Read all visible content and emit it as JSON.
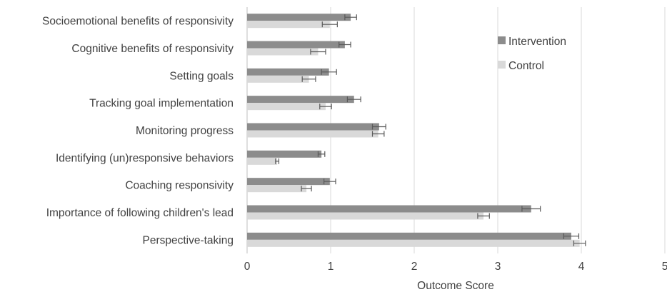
{
  "chart_data": {
    "type": "bar",
    "orientation": "horizontal",
    "categories": [
      "Socioemotional benefits of responsivity",
      "Cognitive benefits of responsivity",
      "Setting goals",
      "Tracking goal implementation",
      "Monitoring progress",
      "Identifying (un)responsive behaviors",
      "Coaching responsivity",
      "Importance of following children's lead",
      "Perspective-taking"
    ],
    "series": [
      {
        "name": "Intervention",
        "color": "#8c8c8c",
        "values": [
          1.24,
          1.17,
          0.98,
          1.28,
          1.58,
          0.89,
          0.99,
          3.4,
          3.88
        ],
        "error": [
          0.07,
          0.07,
          0.09,
          0.08,
          0.08,
          0.04,
          0.07,
          0.11,
          0.09
        ]
      },
      {
        "name": "Control",
        "color": "#d9d9d9",
        "values": [
          0.99,
          0.85,
          0.74,
          0.94,
          1.57,
          0.36,
          0.71,
          2.83,
          3.98
        ],
        "error": [
          0.09,
          0.09,
          0.08,
          0.07,
          0.07,
          0.02,
          0.06,
          0.07,
          0.07
        ]
      }
    ],
    "xlabel": "Outcome Score",
    "ylabel": "",
    "xlim": [
      0,
      5
    ],
    "ticks": [
      "0",
      "1",
      "2",
      "3",
      "4",
      "5"
    ],
    "grid": "vertical",
    "legend": "right",
    "title": ""
  }
}
